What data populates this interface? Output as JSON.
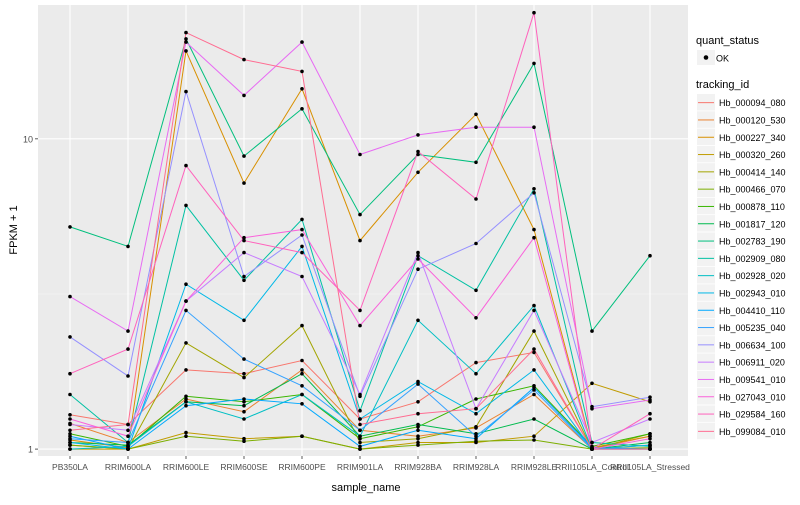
{
  "chart_data": {
    "type": "line",
    "xlabel": "sample_name",
    "ylabel": "FPKM + 1",
    "y_scale": "log10",
    "ylim": [
      0.95,
      27
    ],
    "y_ticks": [
      1,
      10
    ],
    "y_tick_labels": [
      "1",
      "10"
    ],
    "grid": true,
    "categories": [
      "PB350LA",
      "RRIM600LA",
      "RRIM600LE",
      "RRIM600SE",
      "RRIM600PE",
      "RRIM901LA",
      "RRIM928BA",
      "RRIM928LA",
      "RRIM928LE",
      "RRII105LA_Control",
      "RRII105LA_Stressed"
    ],
    "legend_position": "right",
    "legend_point_title": "quant_status",
    "legend_point_label": "OK",
    "legend_title": "tracking_id",
    "series": [
      {
        "name": "Hb_000094_080",
        "color": "#F8766D",
        "values": [
          1.29,
          1.2,
          1.8,
          1.75,
          1.93,
          1.25,
          1.42,
          1.9,
          2.05,
          1.0,
          1.1
        ]
      },
      {
        "name": "Hb_000120_530",
        "color": "#EA8331",
        "values": [
          1.21,
          1.05,
          1.45,
          1.32,
          1.8,
          1.15,
          1.1,
          1.17,
          1.5,
          1.0,
          1.03
        ]
      },
      {
        "name": "Hb_000227_340",
        "color": "#D89000",
        "values": [
          1.07,
          1.01,
          19.2,
          7.2,
          14.5,
          4.7,
          7.8,
          12.0,
          5.1,
          1.01,
          1.1
        ]
      },
      {
        "name": "Hb_000320_260",
        "color": "#C09B00",
        "values": [
          1.0,
          1.0,
          1.13,
          1.08,
          1.1,
          1.0,
          1.05,
          1.05,
          1.1,
          1.63,
          1.42
        ]
      },
      {
        "name": "Hb_000414_140",
        "color": "#A3A500",
        "values": [
          1.03,
          1.0,
          2.2,
          1.7,
          2.5,
          1.05,
          1.08,
          1.18,
          2.4,
          1.0,
          1.12
        ]
      },
      {
        "name": "Hb_000466_070",
        "color": "#7CAE00",
        "values": [
          1.03,
          1.0,
          1.1,
          1.06,
          1.1,
          1.0,
          1.03,
          1.06,
          1.07,
          1.0,
          1.01
        ]
      },
      {
        "name": "Hb_000878_110",
        "color": "#39B600",
        "values": [
          1.12,
          1.02,
          1.48,
          1.42,
          1.5,
          1.08,
          1.18,
          1.45,
          1.6,
          1.02,
          1.12
        ]
      },
      {
        "name": "Hb_001817_120",
        "color": "#00BB4E",
        "values": [
          1.05,
          1.03,
          1.42,
          1.38,
          1.75,
          1.1,
          1.2,
          1.12,
          1.25,
          1.0,
          1.05
        ]
      },
      {
        "name": "Hb_002783_190",
        "color": "#00BF7D",
        "values": [
          5.2,
          4.5,
          21.0,
          8.8,
          12.5,
          5.7,
          8.9,
          8.4,
          17.5,
          2.4,
          4.2
        ]
      },
      {
        "name": "Hb_002909_080",
        "color": "#00C1A3",
        "values": [
          1.5,
          1.05,
          6.1,
          3.5,
          5.5,
          1.33,
          4.2,
          3.25,
          6.9,
          1.05,
          1.02
        ]
      },
      {
        "name": "Hb_002928_020",
        "color": "#00BFC4",
        "values": [
          1.0,
          1.02,
          1.42,
          1.25,
          1.5,
          1.1,
          2.6,
          1.75,
          2.9,
          1.0,
          1.0
        ]
      },
      {
        "name": "Hb_002943_010",
        "color": "#00B8E7",
        "values": [
          1.05,
          1.0,
          3.4,
          2.6,
          4.5,
          1.25,
          1.65,
          1.3,
          1.8,
          1.0,
          1.03
        ]
      },
      {
        "name": "Hb_004410_110",
        "color": "#00A9FF",
        "values": [
          1.1,
          1.0,
          1.38,
          1.45,
          1.4,
          1.02,
          1.15,
          1.08,
          1.58,
          1.01,
          1.0
        ]
      },
      {
        "name": "Hb_005235_040",
        "color": "#35A2FF",
        "values": [
          1.08,
          1.05,
          2.8,
          1.95,
          1.6,
          1.15,
          1.62,
          1.1,
          1.55,
          1.0,
          1.0
        ]
      },
      {
        "name": "Hb_006634_100",
        "color": "#9590FF",
        "values": [
          2.3,
          1.72,
          14.2,
          3.6,
          4.9,
          1.48,
          3.8,
          4.6,
          6.7,
          1.37,
          1.47
        ]
      },
      {
        "name": "Hb_006911_020",
        "color": "#C77CFF",
        "values": [
          1.2,
          1.15,
          3.0,
          4.3,
          3.6,
          1.5,
          4.3,
          1.35,
          2.8,
          1.05,
          1.25
        ]
      },
      {
        "name": "Hb_009541_010",
        "color": "#E76BF3",
        "values": [
          3.1,
          2.4,
          20.5,
          13.8,
          20.5,
          8.9,
          10.3,
          10.9,
          10.9,
          1.35,
          1.44
        ]
      },
      {
        "name": "Hb_027043_010",
        "color": "#FA62DB",
        "values": [
          1.25,
          1.1,
          3.0,
          4.8,
          5.1,
          2.5,
          4.1,
          2.65,
          4.8,
          1.0,
          1.08
        ]
      },
      {
        "name": "Hb_029584_160",
        "color": "#FF62BC",
        "values": [
          1.75,
          2.1,
          8.2,
          4.7,
          4.3,
          2.8,
          9.1,
          6.4,
          25.5,
          1.0,
          1.3
        ]
      },
      {
        "name": "Hb_099084_010",
        "color": "#FF6C91",
        "values": [
          1.15,
          1.2,
          22.0,
          18.0,
          16.5,
          1.2,
          1.3,
          1.35,
          2.1,
          1.0,
          1.0
        ]
      }
    ]
  }
}
